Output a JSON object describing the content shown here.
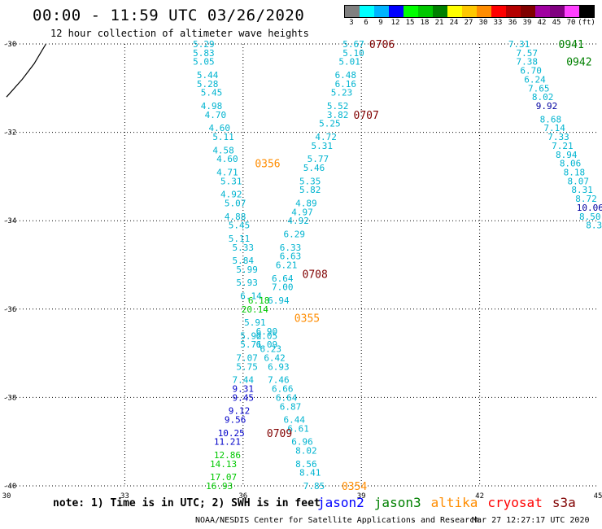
{
  "header": {
    "title": "00:00 - 11:59 UTC 03/26/2020",
    "subtitle": "12 hour collection of altimeter wave heights"
  },
  "legend": {
    "colors": [
      "#808080",
      "#00ffff",
      "#00b4ff",
      "#0000ff",
      "#00ff00",
      "#00c800",
      "#008000",
      "#ffff00",
      "#ffc800",
      "#ff8c00",
      "#ff0000",
      "#b40000",
      "#800000",
      "#a000a0",
      "#800080",
      "#ff40ff",
      "#000000"
    ],
    "labels": [
      "3",
      "6",
      "9",
      "12",
      "15",
      "18",
      "21",
      "24",
      "27",
      "30",
      "33",
      "36",
      "39",
      "42",
      "45",
      "70",
      "(ft)"
    ]
  },
  "axes": {
    "x_ticks": [
      "30",
      "33",
      "36",
      "39",
      "42",
      "45"
    ],
    "y_ticks": [
      "-30",
      "-32",
      "-34",
      "-36",
      "-38",
      "-40"
    ]
  },
  "chart_data": {
    "type": "scatter",
    "xlim": [
      30,
      45
    ],
    "ylim": [
      -40,
      -30
    ],
    "grid": true,
    "coastline": [
      [
        30,
        -31.2
      ],
      [
        30.4,
        -30.8
      ],
      [
        30.7,
        -30.45
      ],
      [
        30.9,
        -30.15
      ],
      [
        31.0,
        -30.0
      ]
    ],
    "tracks": [
      {
        "color": "#00b4d0",
        "points": [
          [
            35.0,
            -30.0,
            "5.29"
          ],
          [
            35.0,
            -30.2,
            "5.83"
          ],
          [
            35.0,
            -30.4,
            "5.05"
          ],
          [
            35.1,
            -30.7,
            "5.44"
          ],
          [
            35.1,
            -30.9,
            "5.28"
          ],
          [
            35.2,
            -31.1,
            "5.45"
          ],
          [
            35.2,
            -31.4,
            "4.98"
          ],
          [
            35.3,
            -31.6,
            "4.70"
          ],
          [
            35.4,
            -31.9,
            "4.60"
          ],
          [
            35.5,
            -32.1,
            "5.11"
          ],
          [
            35.5,
            -32.4,
            "4.58"
          ],
          [
            35.6,
            -32.6,
            "4.60"
          ],
          [
            35.6,
            -32.9,
            "4.71"
          ],
          [
            35.7,
            -33.1,
            "5.31"
          ],
          [
            35.7,
            -33.4,
            "4.92"
          ],
          [
            35.8,
            -33.6,
            "5.07"
          ],
          [
            35.8,
            -33.9,
            "4.88"
          ],
          [
            35.9,
            -34.1,
            "5.45"
          ],
          [
            35.9,
            -34.4,
            "5.11"
          ],
          [
            36.0,
            -34.6,
            "5.33"
          ],
          [
            36.0,
            -34.9,
            "5.84"
          ],
          [
            36.1,
            -35.1,
            "5.99"
          ],
          [
            36.1,
            -35.4,
            "5.93"
          ],
          [
            36.2,
            -35.7,
            "6.14"
          ]
        ]
      },
      {
        "color": "#00b4d0",
        "points": [
          [
            38.8,
            -30.0,
            "5.67"
          ],
          [
            38.8,
            -30.2,
            "5.10"
          ],
          [
            38.7,
            -30.4,
            "5.01"
          ],
          [
            38.6,
            -30.7,
            "6.48"
          ],
          [
            38.6,
            -30.9,
            "6.16"
          ],
          [
            38.5,
            -31.1,
            "5.23"
          ],
          [
            38.4,
            -31.4,
            "5.52"
          ],
          [
            38.4,
            -31.6,
            "3.82"
          ],
          [
            38.2,
            -31.8,
            "5.25"
          ],
          [
            38.1,
            -32.1,
            "4.72"
          ],
          [
            38.0,
            -32.3,
            "5.31"
          ],
          [
            37.9,
            -32.6,
            "5.77"
          ],
          [
            37.8,
            -32.8,
            "5.46"
          ],
          [
            37.7,
            -33.1,
            "5.35"
          ],
          [
            37.7,
            -33.3,
            "5.82"
          ],
          [
            37.6,
            -33.6,
            "4.89"
          ],
          [
            37.5,
            -33.8,
            "4.97"
          ],
          [
            37.4,
            -34.0,
            "4.92"
          ],
          [
            37.3,
            -34.3,
            "6.29"
          ],
          [
            37.2,
            -34.6,
            "6.33"
          ],
          [
            37.2,
            -34.8,
            "6.63"
          ],
          [
            37.1,
            -35.0,
            "6.21"
          ],
          [
            37.0,
            -35.3,
            "6.64"
          ],
          [
            37.0,
            -35.5,
            "7.00"
          ],
          [
            36.9,
            -35.8,
            "6.94"
          ]
        ]
      },
      {
        "color": "#00b4d0",
        "points": [
          [
            36.6,
            -36.5,
            "6.90"
          ],
          [
            36.6,
            -36.6,
            "6.05"
          ],
          [
            36.6,
            -36.8,
            "6.09"
          ],
          [
            36.7,
            -36.9,
            "6.23"
          ],
          [
            36.8,
            -37.1,
            "6.42"
          ],
          [
            36.9,
            -37.3,
            "6.93"
          ],
          [
            36.9,
            -37.6,
            "7.46"
          ],
          [
            37.0,
            -37.8,
            "6.66"
          ],
          [
            37.1,
            -38.0,
            "6.64"
          ],
          [
            37.2,
            -38.2,
            "6.87"
          ],
          [
            37.3,
            -38.5,
            "6.44"
          ],
          [
            37.4,
            -38.7,
            "6.61"
          ],
          [
            37.5,
            -39.0,
            "6.96"
          ],
          [
            37.6,
            -39.2,
            "8.02"
          ],
          [
            37.6,
            -39.5,
            "8.56"
          ],
          [
            37.7,
            -39.7,
            "8.41"
          ],
          [
            37.8,
            -40.0,
            "7.85"
          ]
        ]
      },
      {
        "color": "#00b4d0",
        "points": [
          [
            36.3,
            -36.3,
            "5.91"
          ],
          [
            36.2,
            -36.6,
            "5.92"
          ],
          [
            36.2,
            -36.8,
            "5.71"
          ],
          [
            36.1,
            -37.1,
            "7.07"
          ],
          [
            36.1,
            -37.3,
            "5.75"
          ],
          [
            36.0,
            -37.6,
            "7.44"
          ]
        ]
      },
      {
        "color": "#0000c8",
        "points": [
          [
            36.0,
            -37.8,
            "9.31"
          ],
          [
            36.0,
            -38.0,
            "9.45"
          ],
          [
            35.9,
            -38.3,
            "9.12"
          ],
          [
            35.8,
            -38.5,
            "9.56"
          ],
          [
            35.7,
            -38.8,
            "10.25"
          ],
          [
            35.6,
            -39.0,
            "11.21"
          ]
        ]
      },
      {
        "color": "#00c800",
        "points": [
          [
            36.4,
            -35.8,
            "6.18"
          ],
          [
            36.3,
            -36.0,
            "20.14"
          ],
          [
            35.6,
            -39.3,
            "12.86"
          ],
          [
            35.5,
            -39.5,
            "14.13"
          ],
          [
            35.5,
            -39.8,
            "17.07"
          ],
          [
            35.4,
            -40.0,
            "16.93"
          ]
        ]
      },
      {
        "color": "#00b4d0",
        "points": [
          [
            43.0,
            -30.0,
            "7.31"
          ],
          [
            43.2,
            -30.2,
            "7.57"
          ],
          [
            43.2,
            -30.4,
            "7.38"
          ],
          [
            43.3,
            -30.6,
            "6.70"
          ],
          [
            43.4,
            -30.8,
            "6.24"
          ],
          [
            43.5,
            -31.0,
            "7.65"
          ],
          [
            43.6,
            -31.2,
            "8.02"
          ],
          [
            43.8,
            -31.7,
            "8.68"
          ],
          [
            43.9,
            -31.9,
            "7.14"
          ],
          [
            44.0,
            -32.1,
            "7.33"
          ],
          [
            44.1,
            -32.3,
            "7.21"
          ],
          [
            44.2,
            -32.5,
            "8.94"
          ],
          [
            44.3,
            -32.7,
            "8.06"
          ],
          [
            44.4,
            -32.9,
            "8.18"
          ],
          [
            44.5,
            -33.1,
            "8.07"
          ],
          [
            44.6,
            -33.3,
            "8.31"
          ],
          [
            44.7,
            -33.5,
            "8.72"
          ],
          [
            44.8,
            -33.9,
            "8.50"
          ],
          [
            44.9,
            -34.1,
            "8.3"
          ]
        ]
      },
      {
        "color": "#0000a0",
        "points": [
          [
            43.7,
            -31.4,
            "9.92"
          ],
          [
            44.8,
            -33.7,
            "10.06"
          ]
        ]
      }
    ],
    "time_labels": [
      {
        "x": 39.2,
        "y": -30.0,
        "label": "0706",
        "color": "#800000"
      },
      {
        "x": 38.8,
        "y": -31.6,
        "label": "0707",
        "color": "#800000"
      },
      {
        "x": 37.5,
        "y": -35.2,
        "label": "0708",
        "color": "#800000"
      },
      {
        "x": 36.6,
        "y": -38.8,
        "label": "0709",
        "color": "#800000"
      },
      {
        "x": 36.3,
        "y": -32.7,
        "label": "0356",
        "color": "#ff8c00"
      },
      {
        "x": 37.3,
        "y": -36.2,
        "label": "0355",
        "color": "#ff8c00"
      },
      {
        "x": 38.5,
        "y": -40.0,
        "label": "0354",
        "color": "#ff8c00"
      },
      {
        "x": 44.0,
        "y": -30.0,
        "label": "0941",
        "color": "#008000"
      },
      {
        "x": 44.2,
        "y": -30.4,
        "label": "0942",
        "color": "#008000"
      }
    ]
  },
  "footer": {
    "note": "note: 1) Time is in UTC; 2) SWH is in feet",
    "satellites": [
      {
        "name": "jason2",
        "color": "#0000ff"
      },
      {
        "name": "jason3",
        "color": "#008000"
      },
      {
        "name": "altika",
        "color": "#ff8c00"
      },
      {
        "name": "cryosat",
        "color": "#ff0000"
      },
      {
        "name": "s3a",
        "color": "#800000"
      }
    ],
    "credit": "NOAA/NESDIS Center for Satellite Applications and Research",
    "generated": "Mar 27 12:27:17 UTC 2020"
  }
}
